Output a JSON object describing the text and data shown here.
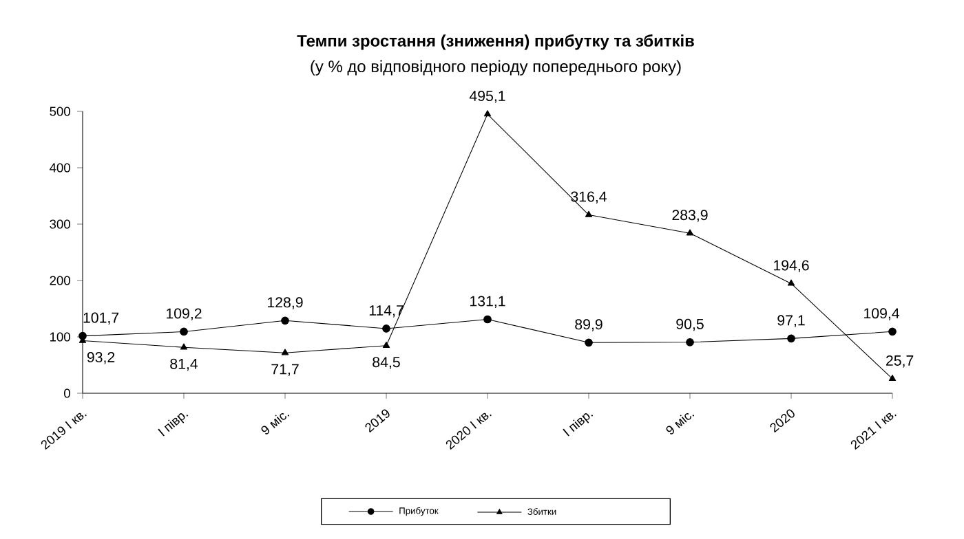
{
  "chart_data": {
    "type": "line",
    "title": "Темпи зростання (зниження) прибутку та збитків",
    "subtitle": "(у % до відповідного періоду попереднього року)",
    "categories": [
      "2019 I кв.",
      "I півр.",
      "9 міс.",
      "2019",
      "2020 I кв.",
      "I півр.",
      "9 міс.",
      "2020",
      "2021 I кв."
    ],
    "series": [
      {
        "name": "Прибуток",
        "color": "#000000",
        "marker": "circle",
        "values": [
          101.7,
          109.2,
          128.9,
          114.7,
          131.1,
          89.9,
          90.5,
          97.1,
          109.4
        ],
        "value_labels": [
          "101,7",
          "109,2",
          "128,9",
          "114,7",
          "131,1",
          "89,9",
          "90,5",
          "97,1",
          "109,4"
        ]
      },
      {
        "name": "Збитки",
        "color": "#000000",
        "marker": "triangle",
        "values": [
          93.2,
          81.4,
          71.7,
          84.5,
          495.1,
          316.4,
          283.9,
          194.6,
          25.7
        ],
        "value_labels": [
          "93,2",
          "81,4",
          "71,7",
          "84,5",
          "495,1",
          "316,4",
          "283,9",
          "194,6",
          "25,7"
        ]
      }
    ],
    "ylim": [
      0,
      500
    ],
    "yticks": [
      0,
      100,
      200,
      300,
      400,
      500
    ],
    "grid": false,
    "legend": "bottom"
  }
}
